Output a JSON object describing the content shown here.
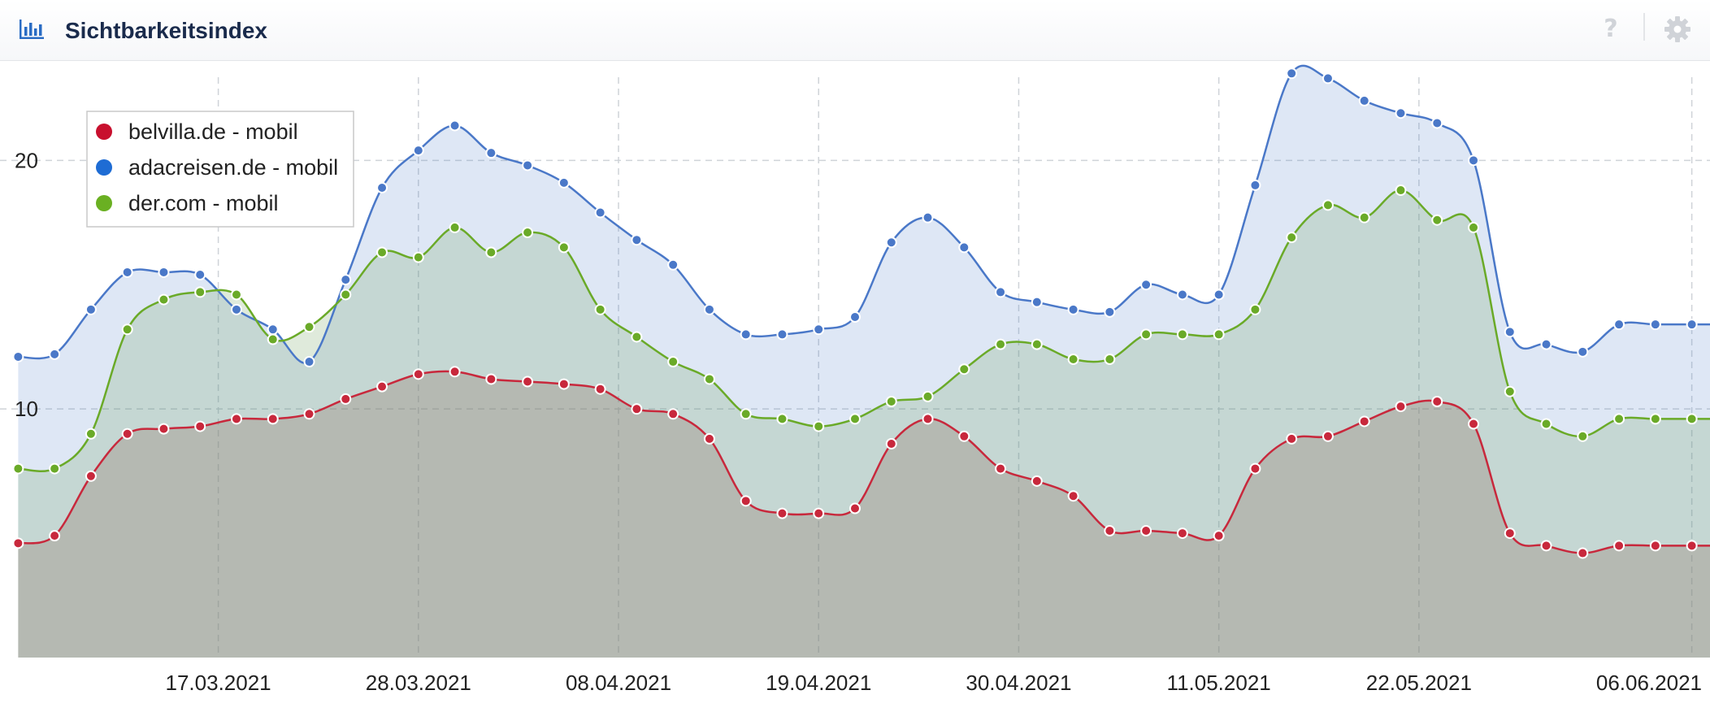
{
  "header": {
    "title": "Sichtbarkeitsindex",
    "chart_icon": "bar-chart-icon",
    "help_icon": "help-icon",
    "help_label": "?",
    "settings_icon": "gear-icon"
  },
  "chart_data": {
    "type": "area",
    "title": "Sichtbarkeitsindex",
    "xlabel": "",
    "ylabel": "",
    "x_unit": "date",
    "x_start": "2021-03-05",
    "x_end": "2021-06-07",
    "x_ticks": [
      "17.03.2021",
      "28.03.2021",
      "08.04.2021",
      "19.04.2021",
      "30.04.2021",
      "11.05.2021",
      "22.05.2021",
      "06.06.2021"
    ],
    "y_ticks": [
      10,
      20
    ],
    "ylim": [
      0,
      24
    ],
    "grid": true,
    "legend_placement": "top-left",
    "x": [
      "2021-03-06",
      "2021-03-08",
      "2021-03-10",
      "2021-03-12",
      "2021-03-14",
      "2021-03-16",
      "2021-03-18",
      "2021-03-20",
      "2021-03-22",
      "2021-03-24",
      "2021-03-26",
      "2021-03-28",
      "2021-03-30",
      "2021-04-01",
      "2021-04-03",
      "2021-04-05",
      "2021-04-07",
      "2021-04-09",
      "2021-04-11",
      "2021-04-13",
      "2021-04-15",
      "2021-04-17",
      "2021-04-19",
      "2021-04-21",
      "2021-04-23",
      "2021-04-25",
      "2021-04-27",
      "2021-04-29",
      "2021-05-01",
      "2021-05-03",
      "2021-05-05",
      "2021-05-07",
      "2021-05-09",
      "2021-05-11",
      "2021-05-13",
      "2021-05-15",
      "2021-05-17",
      "2021-05-19",
      "2021-05-21",
      "2021-05-23",
      "2021-05-25",
      "2021-05-27",
      "2021-05-29",
      "2021-05-31",
      "2021-06-02",
      "2021-06-04",
      "2021-06-06",
      "2021-06-07"
    ],
    "series": [
      {
        "name": "adacreisen.de - mobil",
        "color": "#4a78c8",
        "values": [
          12.1,
          12.2,
          14.0,
          15.5,
          15.5,
          15.4,
          14.0,
          13.2,
          11.9,
          15.2,
          18.9,
          20.4,
          21.4,
          20.3,
          19.8,
          19.1,
          17.9,
          16.8,
          15.8,
          14.0,
          13.0,
          13.0,
          13.2,
          13.7,
          16.7,
          17.7,
          16.5,
          14.7,
          14.3,
          14.0,
          13.9,
          15.0,
          14.6,
          14.6,
          19.0,
          23.5,
          23.3,
          22.4,
          21.9,
          21.5,
          20.0,
          13.1,
          12.6,
          12.3,
          13.4,
          13.4,
          13.4,
          13.4
        ]
      },
      {
        "name": "der.com - mobil",
        "color": "#6aaa28",
        "values": [
          7.6,
          7.6,
          9.0,
          13.2,
          14.4,
          14.7,
          14.6,
          12.8,
          13.3,
          14.6,
          16.3,
          16.1,
          17.3,
          16.3,
          17.1,
          16.5,
          14.0,
          12.9,
          11.9,
          11.2,
          9.8,
          9.6,
          9.3,
          9.6,
          10.3,
          10.5,
          11.6,
          12.6,
          12.6,
          12.0,
          12.0,
          13.0,
          13.0,
          13.0,
          14.0,
          16.9,
          18.2,
          17.7,
          18.8,
          17.6,
          17.3,
          10.7,
          9.4,
          8.9,
          9.6,
          9.6,
          9.6,
          9.6
        ]
      },
      {
        "name": "belvilla.de - mobil",
        "color": "#c8283c",
        "values": [
          4.6,
          4.9,
          7.3,
          9.0,
          9.2,
          9.3,
          9.6,
          9.6,
          9.8,
          10.4,
          10.9,
          11.4,
          11.5,
          11.2,
          11.1,
          11.0,
          10.8,
          10.0,
          9.8,
          8.8,
          6.3,
          5.8,
          5.8,
          6.0,
          8.6,
          9.6,
          8.9,
          7.6,
          7.1,
          6.5,
          5.1,
          5.1,
          5.0,
          4.9,
          7.6,
          8.8,
          8.9,
          9.5,
          10.1,
          10.3,
          9.4,
          5.0,
          4.5,
          4.2,
          4.5,
          4.5,
          4.5,
          4.5
        ]
      }
    ]
  }
}
